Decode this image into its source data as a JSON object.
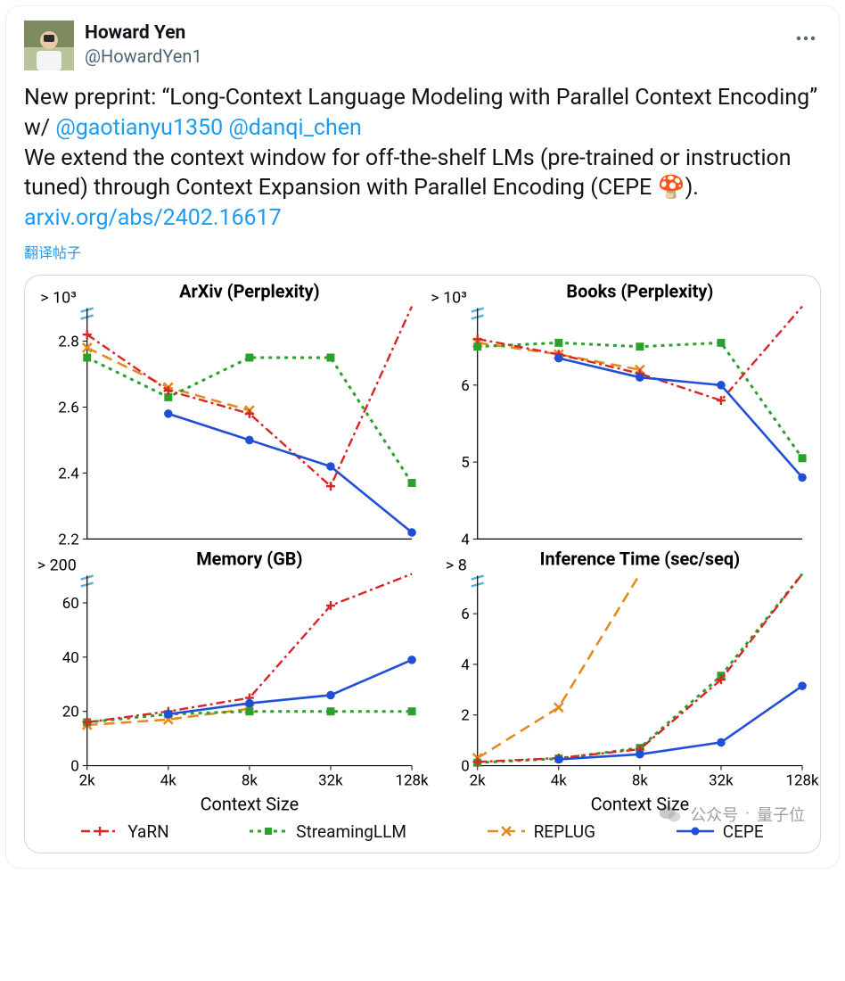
{
  "author": {
    "display_name": "Howard Yen",
    "handle": "@HowardYen1"
  },
  "more_icon_name": "more-icon",
  "tweet": {
    "line1_prefix": "New preprint: “Long-Context Language Modeling with Parallel Context Encoding” w/ ",
    "mention1": "@gaotianyu1350",
    "mention2": "@danqi_chen",
    "line2": "We extend the context window for off-the-shelf LMs (pre-trained or instruction tuned) through Context Expansion with Parallel Encoding (CEPE ",
    "emoji": "🍄",
    "line2_suffix": ").",
    "link_text": "arxiv.org/abs/2402.16617"
  },
  "translate_label": "翻译帖子",
  "colors": {
    "yarn": "#d62728",
    "stream": "#2ca02c",
    "replug": "#e58a1f",
    "cepe": "#1f4fd6",
    "axis": "#000000",
    "overflow_tick": "#5ab0d6",
    "link": "#1d9bf0",
    "text": "#0f1419",
    "muted": "#536471",
    "border": "#cfd9de"
  },
  "legend": {
    "yarn": "YaRN",
    "stream": "StreamingLLM",
    "replug": "REPLUG",
    "cepe": "CEPE"
  },
  "x_axis": {
    "label": "Context Size",
    "ticks": [
      "2k",
      "4k",
      "8k",
      "32k",
      "128k"
    ],
    "positions": [
      0,
      1,
      2,
      3,
      4
    ]
  },
  "panels": {
    "arxiv": {
      "title": "ArXiv (Perplexity)",
      "overflow_label": "> 10³",
      "ylim": [
        2.2,
        2.9
      ],
      "yticks": [
        2.2,
        2.4,
        2.6,
        2.8
      ],
      "series": {
        "yarn": {
          "y": [
            2.82,
            2.65,
            2.58,
            2.36,
            3.1
          ],
          "overflow_last": true
        },
        "stream": {
          "y": [
            2.75,
            2.63,
            2.75,
            2.75,
            2.37
          ]
        },
        "replug": {
          "y": [
            2.78,
            2.66,
            2.59,
            null,
            null
          ]
        },
        "cepe": {
          "y": [
            null,
            2.58,
            2.5,
            2.42,
            2.22
          ]
        }
      }
    },
    "books": {
      "title": "Books (Perplexity)",
      "overflow_label": "> 10³",
      "ylim": [
        4.0,
        7.0
      ],
      "yticks": [
        4,
        5,
        6
      ],
      "series": {
        "yarn": {
          "y": [
            6.6,
            6.4,
            6.15,
            5.8,
            7.2
          ],
          "overflow_last": true
        },
        "stream": {
          "y": [
            6.5,
            6.55,
            6.5,
            6.55,
            5.05
          ]
        },
        "replug": {
          "y": [
            6.55,
            6.4,
            6.2,
            null,
            null
          ]
        },
        "cepe": {
          "y": [
            null,
            6.35,
            6.1,
            6.0,
            4.8
          ]
        }
      }
    },
    "memory": {
      "title": "Memory (GB)",
      "overflow_label": "> 200",
      "ylim": [
        0,
        70
      ],
      "yticks": [
        0,
        20,
        40,
        60
      ],
      "series": {
        "yarn": {
          "y": [
            16,
            20,
            25,
            59,
            85
          ],
          "overflow_last": true
        },
        "stream": {
          "y": [
            16,
            19,
            20,
            20,
            20
          ]
        },
        "replug": {
          "y": [
            15,
            17,
            21,
            null,
            null
          ]
        },
        "cepe": {
          "y": [
            null,
            19,
            23,
            26,
            39
          ]
        }
      }
    },
    "time": {
      "title": "Inference Time (sec/seq)",
      "overflow_label": "> 8",
      "ylim": [
        0,
        7.5
      ],
      "yticks": [
        0,
        2,
        4,
        6
      ],
      "series": {
        "yarn": {
          "y": [
            0.15,
            0.3,
            0.65,
            3.4,
            7.6
          ],
          "overflow_last": true
        },
        "stream": {
          "y": [
            0.12,
            0.28,
            0.7,
            3.55,
            7.6
          ],
          "overflow_last": true
        },
        "replug": {
          "y": [
            0.3,
            2.3,
            8.5,
            null,
            null
          ],
          "overflow_last": true,
          "overflow_index": 2
        },
        "cepe": {
          "y": [
            null,
            0.25,
            0.45,
            0.92,
            3.15
          ]
        }
      }
    }
  },
  "watermark": {
    "prefix": "公众号",
    "sep": "·",
    "name": "量子位"
  }
}
